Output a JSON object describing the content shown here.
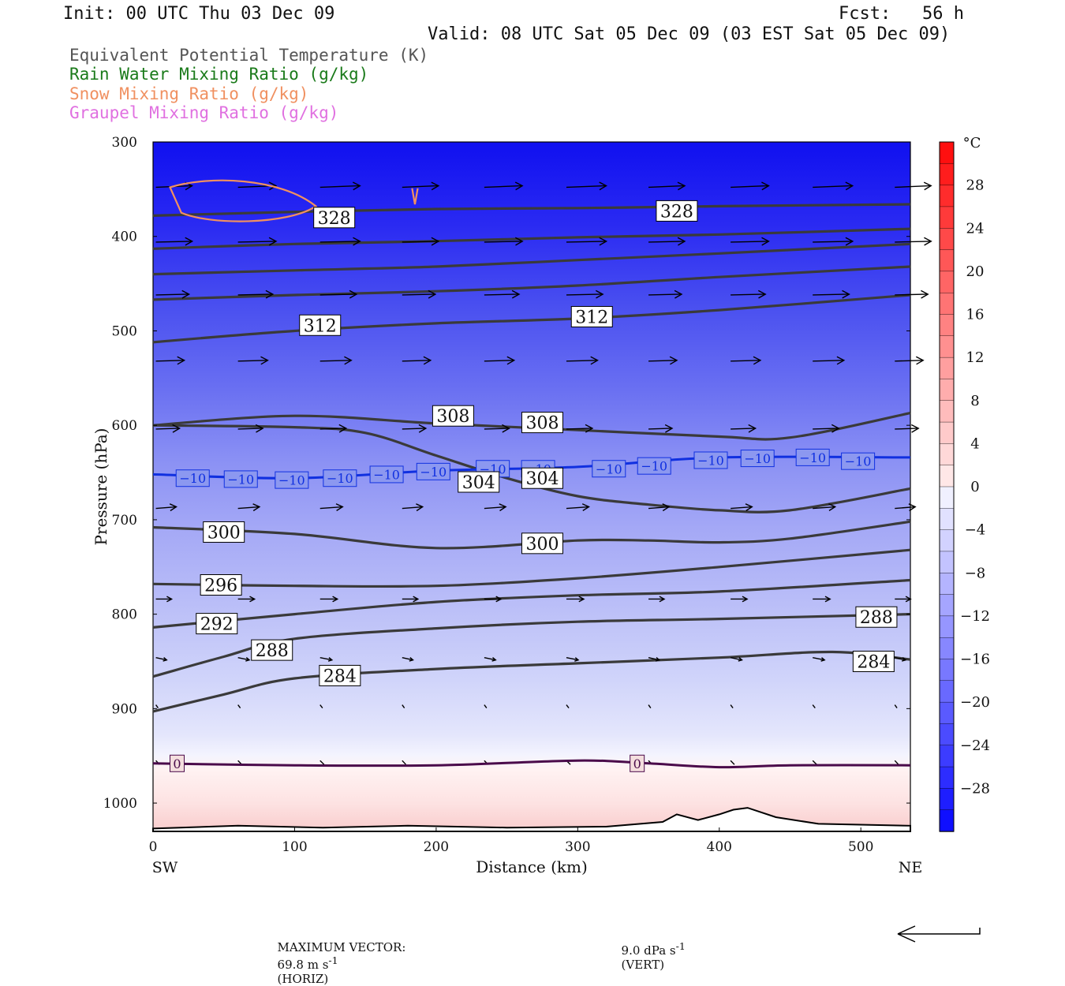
{
  "header": {
    "init": "Init: 00 UTC Thu 03 Dec 09",
    "fcst": "Fcst:   56 h",
    "valid": "Valid: 08 UTC Sat 05 Dec 09 (03 EST Sat 05 Dec 09)"
  },
  "legend": [
    {
      "text": "Equivalent Potential Temperature (K)",
      "color": "#555555"
    },
    {
      "text": "Rain Water Mixing Ratio (g/kg)",
      "color": "#1a7a1a"
    },
    {
      "text": "Snow Mixing Ratio (g/kg)",
      "color": "#f09060"
    },
    {
      "text": "Graupel Mixing Ratio (g/kg)",
      "color": "#e070e0"
    }
  ],
  "chart_data": {
    "type": "cross-section",
    "xlabel": "Distance (km)",
    "ylabel": "Pressure (hPa)",
    "x_ticks": [
      0,
      100,
      200,
      300,
      400,
      500
    ],
    "y_ticks": [
      300,
      400,
      500,
      600,
      700,
      800,
      900,
      1000
    ],
    "xlim": [
      0,
      535
    ],
    "ylim": [
      1030,
      300
    ],
    "x_end_labels": {
      "left": "SW",
      "right": "NE"
    },
    "colorbar": {
      "unit": "°C",
      "ticks": [
        28,
        24,
        20,
        16,
        12,
        8,
        4,
        0,
        -4,
        -8,
        -12,
        -16,
        -20,
        -24,
        -28
      ]
    },
    "theta_e_contours": [
      {
        "label": "328",
        "points": [
          [
            0,
            378
          ],
          [
            100,
            374
          ],
          [
            200,
            371
          ],
          [
            300,
            370
          ],
          [
            400,
            368
          ],
          [
            535,
            366
          ]
        ]
      },
      {
        "label": null,
        "points": [
          [
            0,
            413
          ],
          [
            100,
            408
          ],
          [
            200,
            405
          ],
          [
            300,
            401
          ],
          [
            400,
            398
          ],
          [
            535,
            392
          ]
        ]
      },
      {
        "label": null,
        "points": [
          [
            0,
            440
          ],
          [
            100,
            436
          ],
          [
            200,
            432
          ],
          [
            300,
            425
          ],
          [
            400,
            418
          ],
          [
            535,
            408
          ]
        ]
      },
      {
        "label": null,
        "points": [
          [
            0,
            467
          ],
          [
            100,
            462
          ],
          [
            200,
            458
          ],
          [
            300,
            452
          ],
          [
            400,
            443
          ],
          [
            535,
            432
          ]
        ]
      },
      {
        "label": "312",
        "points": [
          [
            0,
            512
          ],
          [
            100,
            500
          ],
          [
            200,
            492
          ],
          [
            300,
            487
          ],
          [
            400,
            478
          ],
          [
            535,
            462
          ]
        ]
      },
      {
        "label": "308",
        "points": [
          [
            0,
            600
          ],
          [
            100,
            590
          ],
          [
            200,
            598
          ],
          [
            300,
            605
          ],
          [
            400,
            612
          ],
          [
            450,
            613
          ],
          [
            535,
            587
          ]
        ]
      },
      {
        "label": "304",
        "points": [
          [
            0,
            600
          ],
          [
            100,
            602
          ],
          [
            150,
            608
          ],
          [
            200,
            632
          ],
          [
            250,
            656
          ],
          [
            300,
            675
          ],
          [
            350,
            684
          ],
          [
            400,
            690
          ],
          [
            450,
            690
          ],
          [
            535,
            667
          ]
        ]
      },
      {
        "label": "300",
        "points": [
          [
            0,
            708
          ],
          [
            100,
            715
          ],
          [
            200,
            730
          ],
          [
            300,
            722
          ],
          [
            350,
            722
          ],
          [
            400,
            724
          ],
          [
            450,
            720
          ],
          [
            535,
            702
          ]
        ]
      },
      {
        "label": "296",
        "points": [
          [
            0,
            768
          ],
          [
            100,
            770
          ],
          [
            200,
            770
          ],
          [
            300,
            762
          ],
          [
            400,
            750
          ],
          [
            535,
            732
          ]
        ]
      },
      {
        "label": "292",
        "points": [
          [
            0,
            814
          ],
          [
            100,
            800
          ],
          [
            200,
            787
          ],
          [
            300,
            780
          ],
          [
            400,
            776
          ],
          [
            535,
            764
          ]
        ]
      },
      {
        "label": "288",
        "points": [
          [
            0,
            866
          ],
          [
            50,
            845
          ],
          [
            100,
            826
          ],
          [
            200,
            815
          ],
          [
            300,
            808
          ],
          [
            400,
            805
          ],
          [
            535,
            800
          ]
        ]
      },
      {
        "label": "284",
        "points": [
          [
            0,
            903
          ],
          [
            50,
            885
          ],
          [
            100,
            868
          ],
          [
            200,
            858
          ],
          [
            300,
            852
          ],
          [
            400,
            846
          ],
          [
            480,
            840
          ],
          [
            535,
            848
          ]
        ]
      }
    ],
    "contour_label_positions": [
      {
        "text": "328",
        "x": 128,
        "p": 380
      },
      {
        "text": "328",
        "x": 370,
        "p": 373
      },
      {
        "text": "312",
        "x": 118,
        "p": 494
      },
      {
        "text": "312",
        "x": 310,
        "p": 485
      },
      {
        "text": "308",
        "x": 212,
        "p": 590
      },
      {
        "text": "308",
        "x": 275,
        "p": 597
      },
      {
        "text": "304",
        "x": 230,
        "p": 660
      },
      {
        "text": "304",
        "x": 275,
        "p": 656
      },
      {
        "text": "300",
        "x": 50,
        "p": 713
      },
      {
        "text": "300",
        "x": 275,
        "p": 725
      },
      {
        "text": "296",
        "x": 48,
        "p": 769
      },
      {
        "text": "292",
        "x": 45,
        "p": 810
      },
      {
        "text": "288",
        "x": 84,
        "p": 838
      },
      {
        "text": "288",
        "x": 511,
        "p": 803
      },
      {
        "text": "284",
        "x": 132,
        "p": 865
      },
      {
        "text": "284",
        "x": 509,
        "p": 850
      }
    ],
    "isotherms": [
      {
        "value": -10,
        "color": "#1030e0",
        "points": [
          [
            0,
            652
          ],
          [
            100,
            656
          ],
          [
            200,
            648
          ],
          [
            300,
            644
          ],
          [
            400,
            634
          ],
          [
            535,
            634
          ]
        ],
        "labels": [
          {
            "text": "−10",
            "x": 28,
            "p": 656
          },
          {
            "text": "−10",
            "x": 62,
            "p": 657
          },
          {
            "text": "−10",
            "x": 98,
            "p": 658
          },
          {
            "text": "−10",
            "x": 132,
            "p": 656
          },
          {
            "text": "−10",
            "x": 165,
            "p": 652
          },
          {
            "text": "−10",
            "x": 198,
            "p": 649
          },
          {
            "text": "−10",
            "x": 240,
            "p": 646
          },
          {
            "text": "−10",
            "x": 272,
            "p": 646
          },
          {
            "text": "−10",
            "x": 322,
            "p": 646
          },
          {
            "text": "−10",
            "x": 354,
            "p": 643
          },
          {
            "text": "−10",
            "x": 394,
            "p": 637
          },
          {
            "text": "−10",
            "x": 427,
            "p": 635
          },
          {
            "text": "−10",
            "x": 466,
            "p": 634
          },
          {
            "text": "−10",
            "x": 498,
            "p": 638
          }
        ]
      },
      {
        "value": 0,
        "color": "#4a0a4a",
        "points": [
          [
            0,
            958
          ],
          [
            100,
            960
          ],
          [
            200,
            960
          ],
          [
            300,
            955
          ],
          [
            350,
            958
          ],
          [
            400,
            962
          ],
          [
            450,
            960
          ],
          [
            535,
            960
          ]
        ],
        "labels": [
          {
            "text": "0",
            "x": 17,
            "p": 958
          },
          {
            "text": "0",
            "x": 342,
            "p": 958
          }
        ]
      }
    ],
    "snow_contour": {
      "color": "#f09060"
    },
    "max_vector": {
      "label": "MAXIMUM VECTOR:",
      "horiz": "69.8 m s",
      "horiz_sup": "-1",
      "horiz_unit": "(HORIZ)",
      "vert": "9.0 dPa s",
      "vert_sup": "-1",
      "vert_unit": "(VERT)"
    }
  }
}
